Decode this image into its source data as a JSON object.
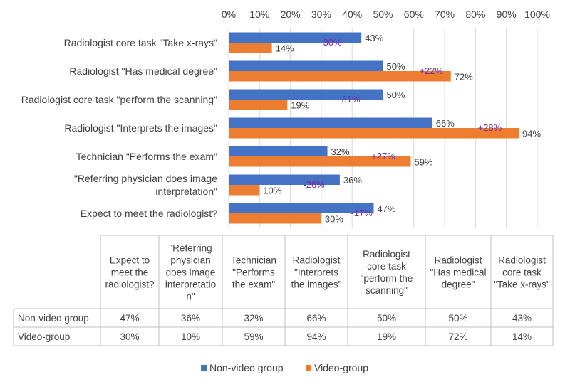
{
  "chart_data": {
    "type": "bar",
    "orientation": "horizontal",
    "xlim": [
      0,
      100
    ],
    "x_ticks": [
      "0%",
      "10%",
      "20%",
      "30%",
      "40%",
      "50%",
      "60%",
      "70%",
      "80%",
      "90%",
      "100%"
    ],
    "categories": [
      "Radiologist core task \"Take x-rays\"",
      "Radiologist \"Has medical degree\"",
      "Radiologist core task \"perform the scanning\"",
      "Radiologist \"Interprets the images\"",
      "Technician \"Performs the exam\"",
      "\"Referring physician does image interpretation\"",
      "Expect to meet the radiologist?"
    ],
    "category_label_lines": [
      [
        "Radiologist core task \"Take x-rays\""
      ],
      [
        "Radiologist \"Has medical degree\""
      ],
      [
        "Radiologist core task \"perform the scanning\""
      ],
      [
        "Radiologist \"Interprets the images\""
      ],
      [
        "Technician \"Performs the exam\""
      ],
      [
        "\"Referring physician does image",
        "interpretation\""
      ],
      [
        "Expect to meet the radiologist?"
      ]
    ],
    "series": [
      {
        "name": "Non-video group",
        "color": "#4472c4",
        "values": [
          43,
          50,
          50,
          66,
          32,
          36,
          47
        ],
        "labels": [
          "43%",
          "50%",
          "50%",
          "66%",
          "32%",
          "36%",
          "47%"
        ]
      },
      {
        "name": "Video-group",
        "color": "#ed7d31",
        "values": [
          14,
          72,
          19,
          94,
          59,
          10,
          30
        ],
        "labels": [
          "14%",
          "72%",
          "19%",
          "94%",
          "59%",
          "10%",
          "30%"
        ]
      }
    ],
    "differences": [
      "-30%",
      "+22%",
      "-31%",
      "+28%",
      "+27%",
      "-26%",
      "-17%"
    ],
    "difference_color": "#7030a0",
    "data_table": {
      "headers": [
        [
          "Expect to",
          "meet the",
          "radiologist?"
        ],
        [
          "\"Referring",
          "physician",
          "does image",
          "interpretatio",
          "n\""
        ],
        [
          "Technician",
          "\"Performs",
          "the exam\""
        ],
        [
          "Radiologist",
          "\"Interprets",
          "the images\""
        ],
        [
          "Radiologist",
          "core task",
          "\"perform the",
          "scanning\""
        ],
        [
          "Radiologist",
          "\"Has medical",
          "degree\""
        ],
        [
          "Radiologist",
          "core task",
          "\"Take x-rays\""
        ]
      ],
      "rows": [
        {
          "label": "Non-video group",
          "values": [
            "47%",
            "36%",
            "32%",
            "66%",
            "50%",
            "50%",
            "43%"
          ]
        },
        {
          "label": "Video-group",
          "values": [
            "30%",
            "10%",
            "59%",
            "94%",
            "19%",
            "72%",
            "14%"
          ]
        }
      ]
    },
    "legend": {
      "position": "bottom",
      "items": [
        "Non-video group",
        "Video-group"
      ]
    }
  }
}
